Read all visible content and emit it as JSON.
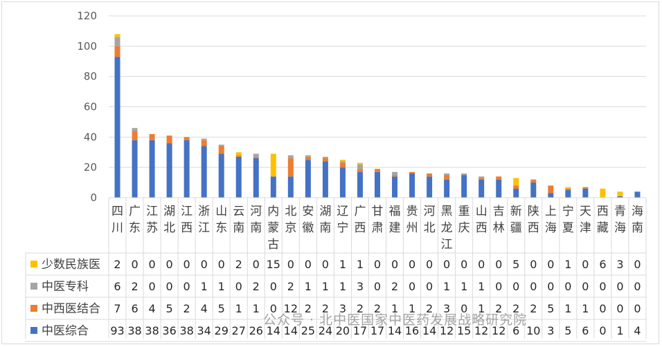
{
  "chart_data": {
    "type": "bar",
    "stacked": true,
    "categories": [
      "四川",
      "广东",
      "江苏",
      "湖北",
      "江西",
      "浙江",
      "山东",
      "云南",
      "河南",
      "内蒙古",
      "北京",
      "安徽",
      "湖南",
      "辽宁",
      "广西",
      "甘肃",
      "福建",
      "贵州",
      "河北",
      "黑龙江",
      "重庆",
      "山西",
      "吉林",
      "新疆",
      "陕西",
      "上海",
      "宁夏",
      "天津",
      "西藏",
      "青海",
      "海南"
    ],
    "series": [
      {
        "name": "中医综合",
        "color": "#4472c4",
        "values": [
          93,
          38,
          38,
          36,
          38,
          34,
          29,
          27,
          26,
          14,
          14,
          25,
          24,
          20,
          17,
          17,
          14,
          16,
          14,
          12,
          15,
          12,
          12,
          6,
          10,
          3,
          5,
          6,
          0,
          1,
          4
        ]
      },
      {
        "name": "中西医结合",
        "color": "#ed7d31",
        "values": [
          7,
          6,
          4,
          5,
          2,
          4,
          5,
          1,
          1,
          0,
          12,
          2,
          2,
          3,
          2,
          2,
          1,
          1,
          2,
          3,
          0,
          1,
          2,
          2,
          2,
          5,
          1,
          1,
          0,
          0,
          0
        ]
      },
      {
        "name": "中医专科",
        "color": "#a5a5a5",
        "values": [
          6,
          2,
          0,
          0,
          0,
          1,
          1,
          0,
          2,
          0,
          2,
          1,
          1,
          1,
          3,
          0,
          2,
          0,
          0,
          1,
          1,
          1,
          0,
          0,
          0,
          0,
          0,
          0,
          0,
          0,
          0
        ]
      },
      {
        "name": "少数民族医",
        "color": "#ffc000",
        "values": [
          2,
          0,
          0,
          0,
          0,
          0,
          0,
          2,
          0,
          15,
          0,
          0,
          0,
          1,
          1,
          0,
          0,
          0,
          0,
          0,
          0,
          0,
          0,
          5,
          0,
          0,
          1,
          0,
          6,
          3,
          0
        ]
      }
    ],
    "ylim": [
      0,
      120
    ],
    "yticks": [
      0,
      20,
      40,
      60,
      80,
      100,
      120
    ],
    "grid": true,
    "legend": "data-table"
  },
  "watermark": "公众号 · 北中医国家中医药发展战略研究院"
}
